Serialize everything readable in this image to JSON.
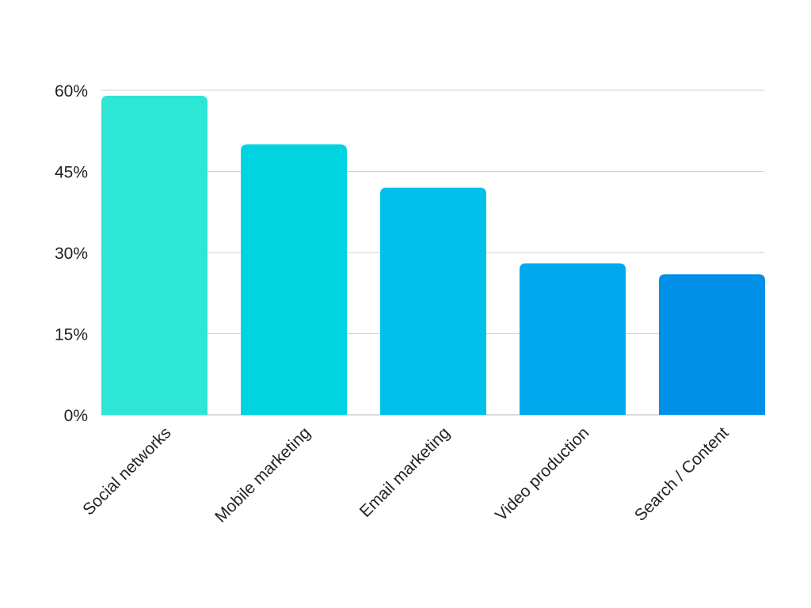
{
  "chart_data": {
    "type": "bar",
    "title": "",
    "xlabel": "",
    "ylabel": "",
    "categories": [
      "Social networks",
      "Mobile marketing",
      "Email marketing",
      "Video production",
      "Search / Content"
    ],
    "values": [
      59,
      50,
      42,
      28,
      26
    ],
    "value_unit": "%",
    "ylim": [
      0,
      60
    ],
    "yticks": [
      0,
      15,
      30,
      45,
      60
    ],
    "ytick_labels": [
      "0%",
      "15%",
      "30%",
      "45%",
      "60%"
    ],
    "grid": true,
    "legend": "none",
    "bar_colors": [
      "#2ee6d6",
      "#00d4e0",
      "#00c1ec",
      "#00a8ee",
      "#0090e8"
    ],
    "gridline_color": "#d0d0d0",
    "axis_color": "#cfcfcf"
  }
}
